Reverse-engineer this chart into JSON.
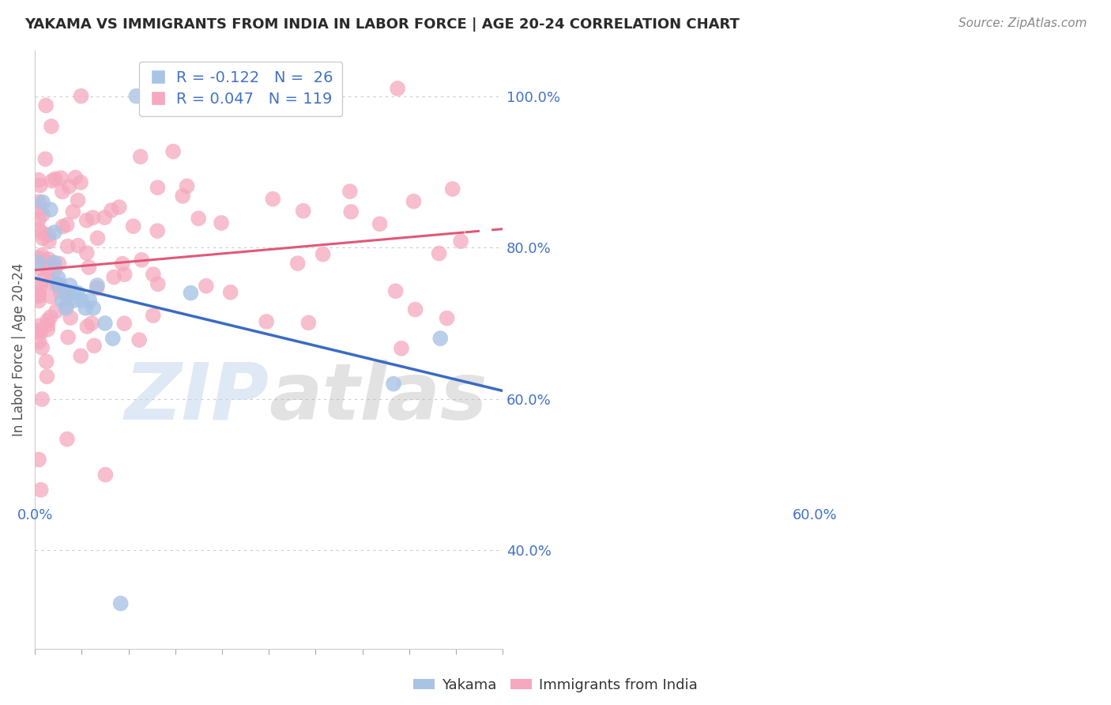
{
  "title": "YAKAMA VS IMMIGRANTS FROM INDIA IN LABOR FORCE | AGE 20-24 CORRELATION CHART",
  "source": "Source: ZipAtlas.com",
  "ylabel": "In Labor Force | Age 20-24",
  "yticks": [
    0.4,
    0.6,
    0.8,
    1.0
  ],
  "ytick_labels": [
    "40.0%",
    "60.0%",
    "80.0%",
    "100.0%"
  ],
  "xmin": 0.0,
  "xmax": 0.6,
  "ymin": 0.27,
  "ymax": 1.06,
  "yakama_color": "#a8c4e5",
  "india_color": "#f5a8be",
  "trend_blue": "#3a6bc4",
  "trend_pink": "#e05878",
  "watermark": "ZIPatlas",
  "watermark_blue": "#c5d8ee",
  "watermark_gray": "#b8b8b8",
  "background_color": "#ffffff",
  "title_color": "#2a2a2a",
  "axis_label_color": "#4472c4",
  "grid_color": "#cccccc",
  "source_color": "#888888",
  "legend_r1_text": "R = -0.122   N =  26",
  "legend_r2_text": "R = 0.047   N = 119",
  "legend_text_color": "#4472c4",
  "bottom_legend_color": "#333333",
  "title_fontsize": 13,
  "axis_tick_fontsize": 13,
  "legend_fontsize": 14
}
